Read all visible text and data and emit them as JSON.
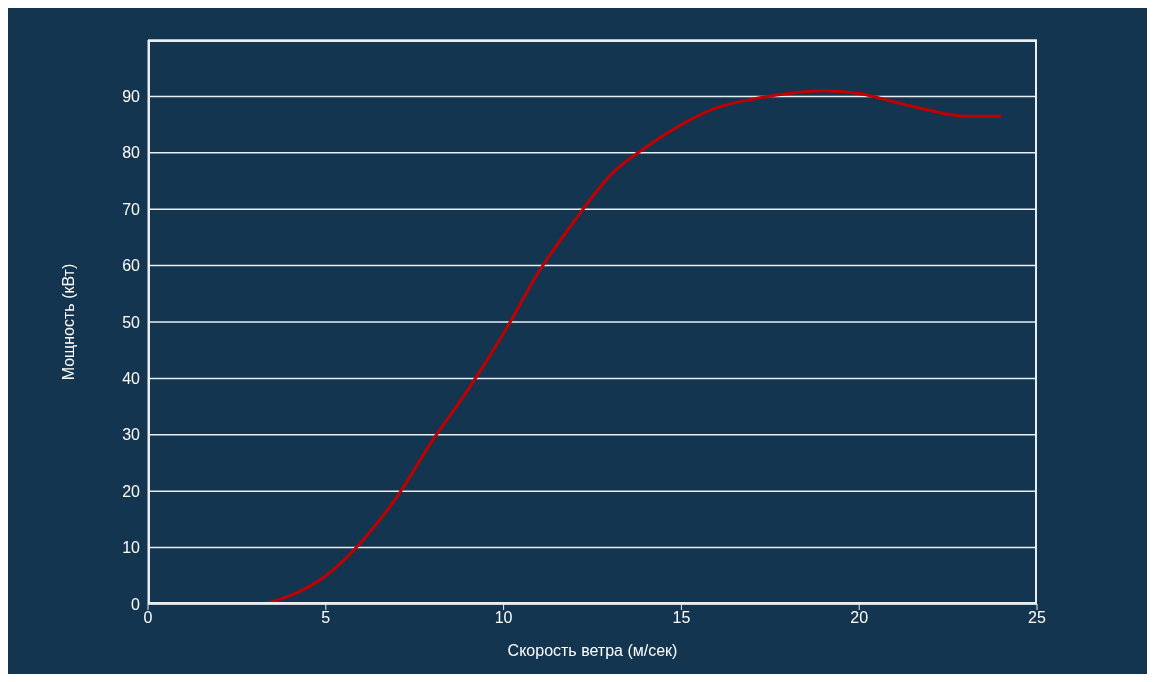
{
  "chart_data": {
    "type": "line",
    "xlabel": "Скорость ветра (м/сек)",
    "ylabel": "Мощность (кВт)",
    "x": [
      0,
      3,
      4,
      5,
      6,
      7,
      8,
      9,
      10,
      11,
      12,
      13,
      14,
      15,
      16,
      17,
      18,
      19,
      20,
      21,
      22,
      23,
      24
    ],
    "series": [
      {
        "color": "#c00000",
        "values": [
          0,
          0,
          1.5,
          5,
          11,
          19,
          29,
          38,
          48,
          59,
          68,
          76,
          81,
          85,
          88,
          89.5,
          90.5,
          91,
          90.5,
          89,
          87.5,
          86.5,
          86.5
        ]
      }
    ],
    "xlim": [
      0,
      25
    ],
    "xticks": [
      0,
      5,
      10,
      15,
      20,
      25
    ],
    "ylim": [
      0,
      100
    ],
    "yticks": [
      0,
      10,
      20,
      30,
      40,
      50,
      60,
      70,
      80,
      90
    ],
    "grid": "y",
    "marker": "none",
    "line_style": "solid"
  }
}
